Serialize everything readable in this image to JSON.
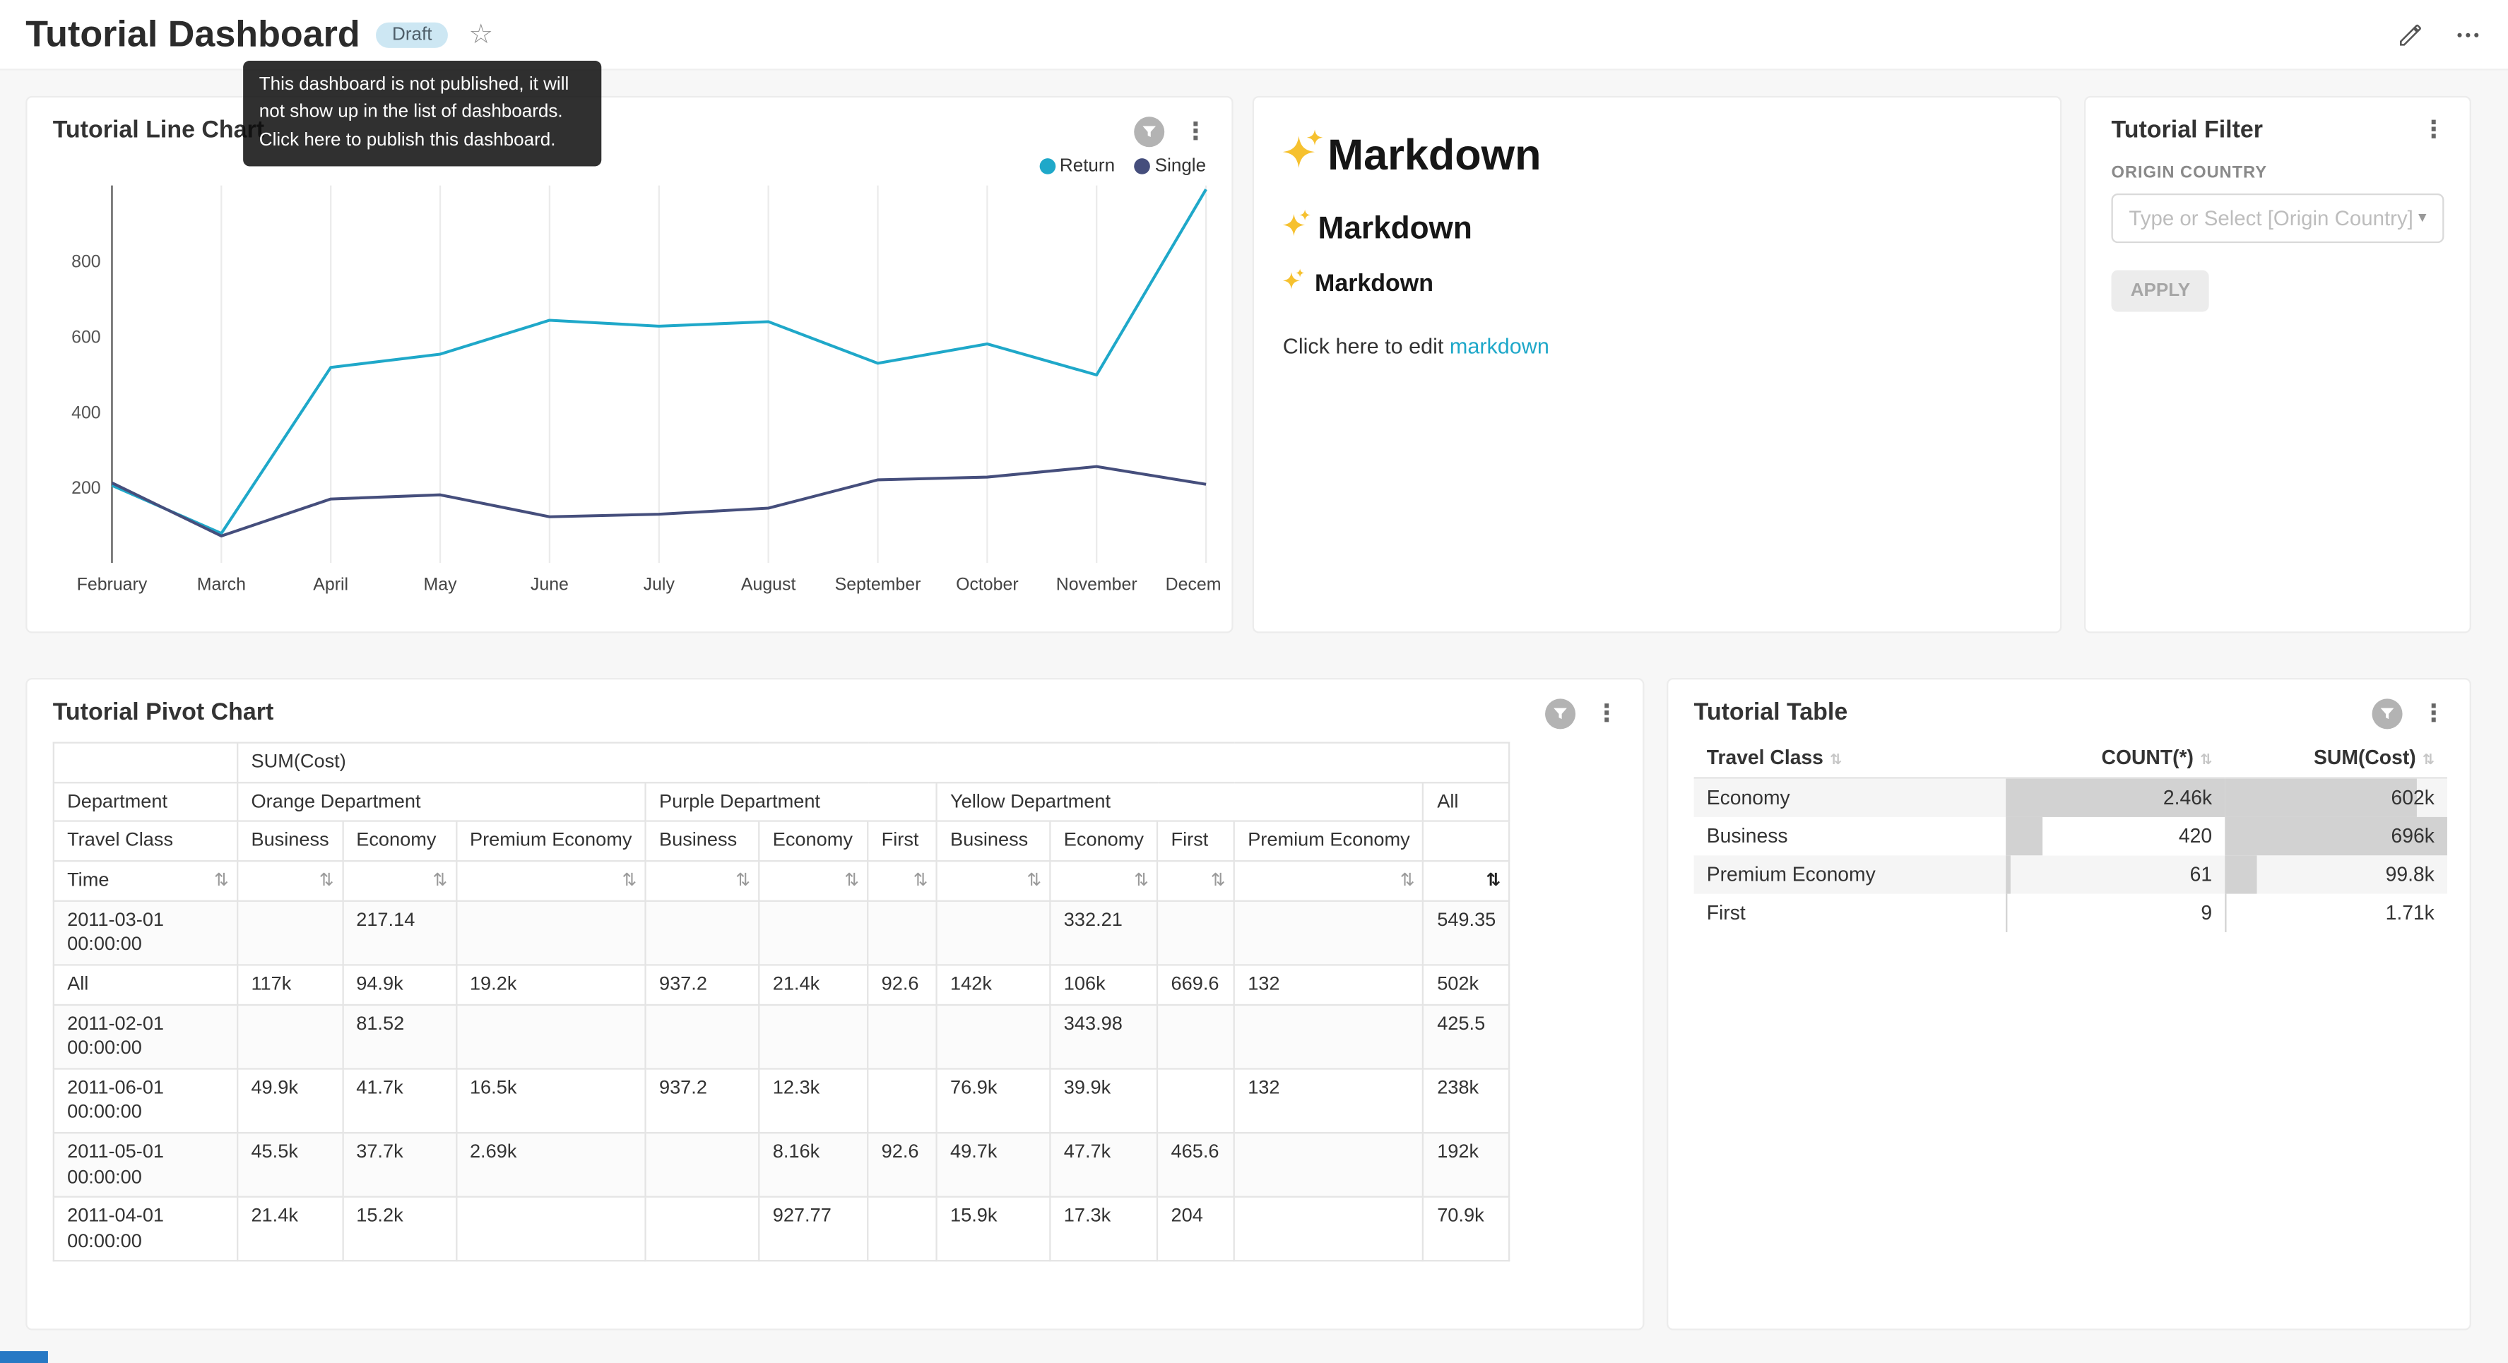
{
  "header": {
    "title": "Tutorial Dashboard",
    "badge": "Draft",
    "tooltip": {
      "lines": [
        "This dashboard is not published, it will",
        "not show up in the list of dashboards.",
        "Click here to publish this dashboard."
      ]
    }
  },
  "colors": {
    "accent": "#1fa8c9",
    "series_return": "#1fa8c9",
    "series_single": "#454e7c",
    "link": "#1fa8c9",
    "bar": "#d2d2d2"
  },
  "line_chart_card": {
    "title": "Tutorial Line Chart",
    "legend": [
      {
        "label": "Return",
        "color": "#1fa8c9"
      },
      {
        "label": "Single",
        "color": "#454e7c"
      }
    ]
  },
  "chart_data": {
    "type": "line",
    "title": "Tutorial Line Chart",
    "categories": [
      "February",
      "March",
      "April",
      "May",
      "June",
      "July",
      "August",
      "September",
      "October",
      "November",
      "December"
    ],
    "series": [
      {
        "name": "Return",
        "color": "#1fa8c9",
        "values": [
          205,
          78,
          518,
          553,
          643,
          627,
          639,
          529,
          580,
          498,
          990
        ]
      },
      {
        "name": "Single",
        "color": "#454e7c",
        "values": [
          212,
          71,
          169,
          180,
          122,
          129,
          145,
          220,
          227,
          255,
          208
        ]
      }
    ],
    "ylim": [
      0,
      1000
    ],
    "yticks": [
      200,
      400,
      600,
      800
    ],
    "grid": "vertical",
    "legend_position": "top-right"
  },
  "markdown_card": {
    "heading1": "Markdown",
    "heading2": "Markdown",
    "heading3": "Markdown",
    "paragraph_prefix": "Click here to edit ",
    "paragraph_link": "markdown"
  },
  "filter_card": {
    "title": "Tutorial Filter",
    "field_label": "ORIGIN COUNTRY",
    "select_placeholder": "Type or Select [Origin Country]",
    "apply_label": "APPLY"
  },
  "pivot_card": {
    "title": "Tutorial Pivot Chart",
    "metric_label": "SUM(Cost)",
    "department_label": "Department",
    "travel_class_label": "Travel Class",
    "time_label": "Time",
    "column_groups": [
      {
        "department": "Orange Department",
        "classes": [
          "Business",
          "Economy",
          "Premium Economy"
        ]
      },
      {
        "department": "Purple Department",
        "classes": [
          "Business",
          "Economy",
          "First"
        ]
      },
      {
        "department": "Yellow Department",
        "classes": [
          "Business",
          "Economy",
          "First",
          "Premium Economy"
        ]
      },
      {
        "department": "All",
        "classes": [
          ""
        ]
      }
    ],
    "rows": [
      {
        "label": "2011-03-01",
        "sublabel": "00:00:00",
        "values": [
          "",
          "217.14",
          "",
          "",
          "",
          "",
          "",
          "332.21",
          "",
          "",
          "549.35"
        ]
      },
      {
        "label": "All",
        "sublabel": "",
        "values": [
          "117k",
          "94.9k",
          "19.2k",
          "937.2",
          "21.4k",
          "92.6",
          "142k",
          "106k",
          "669.6",
          "132",
          "502k"
        ]
      },
      {
        "label": "2011-02-01",
        "sublabel": "00:00:00",
        "values": [
          "",
          "81.52",
          "",
          "",
          "",
          "",
          "",
          "343.98",
          "",
          "",
          "425.5"
        ]
      },
      {
        "label": "2011-06-01",
        "sublabel": "00:00:00",
        "values": [
          "49.9k",
          "41.7k",
          "16.5k",
          "937.2",
          "12.3k",
          "",
          "76.9k",
          "39.9k",
          "",
          "132",
          "238k"
        ]
      },
      {
        "label": "2011-05-01",
        "sublabel": "00:00:00",
        "values": [
          "45.5k",
          "37.7k",
          "2.69k",
          "",
          "8.16k",
          "92.6",
          "49.7k",
          "47.7k",
          "465.6",
          "",
          "192k"
        ]
      },
      {
        "label": "2011-04-01",
        "sublabel": "00:00:00",
        "values": [
          "21.4k",
          "15.2k",
          "",
          "",
          "927.77",
          "",
          "15.9k",
          "17.3k",
          "204",
          "",
          "70.9k"
        ]
      }
    ]
  },
  "table_card": {
    "title": "Tutorial Table",
    "columns": [
      "Travel Class",
      "COUNT(*)",
      "SUM(Cost)"
    ],
    "rows": [
      {
        "travel_class": "Economy",
        "count": "2.46k",
        "count_bar_pct": 100,
        "sum": "602k",
        "sum_bar_pct": 86.5
      },
      {
        "travel_class": "Business",
        "count": "420",
        "count_bar_pct": 17,
        "sum": "696k",
        "sum_bar_pct": 100
      },
      {
        "travel_class": "Premium Economy",
        "count": "61",
        "count_bar_pct": 2.5,
        "sum": "99.8k",
        "sum_bar_pct": 14.3
      },
      {
        "travel_class": "First",
        "count": "9",
        "count_bar_pct": 0.4,
        "sum": "1.71k",
        "sum_bar_pct": 0.3
      }
    ]
  }
}
